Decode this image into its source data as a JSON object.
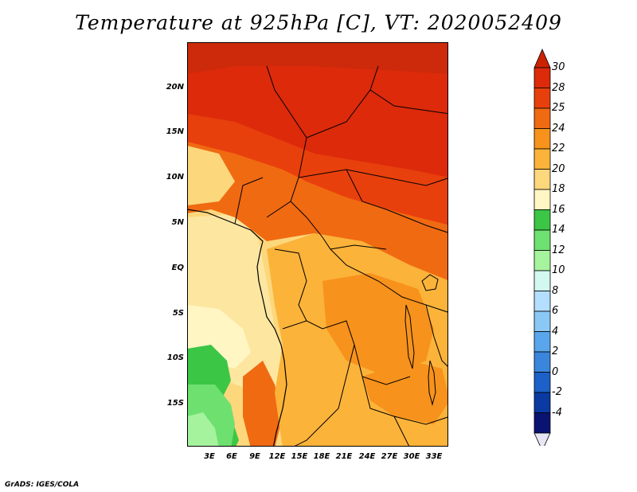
{
  "title": "Temperature at 925hPa [C], VT: 2020052409",
  "footer": "GrADS: IGES/COLA",
  "map": {
    "variable": "Temperature at 925hPa",
    "units": "C",
    "valid_time": "2020052409",
    "lat_labels": [
      "20N",
      "15N",
      "10N",
      "5N",
      "EQ",
      "5S",
      "10S",
      "15S"
    ],
    "lon_labels": [
      "3E",
      "6E",
      "9E",
      "12E",
      "15E",
      "18E",
      "21E",
      "24E",
      "27E",
      "30E",
      "33E"
    ]
  },
  "colorbar": {
    "labels": [
      "30",
      "28",
      "25",
      "24",
      "22",
      "20",
      "18",
      "16",
      "14",
      "12",
      "10",
      "8",
      "6",
      "4",
      "2",
      "0",
      "-2",
      "-4"
    ],
    "colors": [
      "#dc2a0a",
      "#e8400c",
      "#f06a12",
      "#f7921c",
      "#fbb33a",
      "#fdd77c",
      "#fff6c4",
      "#3cc646",
      "#6ee070",
      "#a6f39e",
      "#d2f8f0",
      "#b4deff",
      "#8cc8f5",
      "#5aa6ec",
      "#3b86dd",
      "#1c60c8",
      "#0b3aa2",
      "#0a1470"
    ],
    "top_color": "#cc2200",
    "bottom_color": "#e6e6f5"
  }
}
